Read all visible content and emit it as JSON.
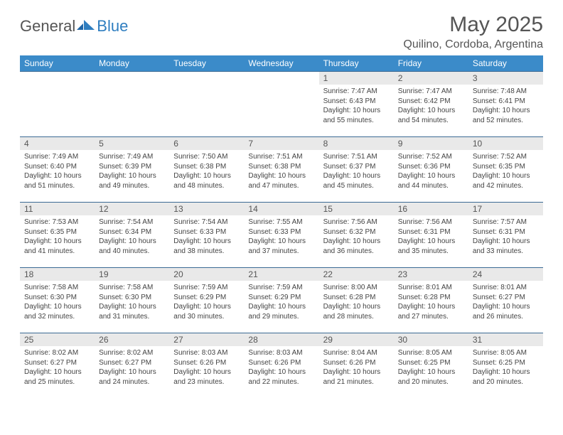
{
  "brand": {
    "part1": "General",
    "part2": "Blue"
  },
  "colors": {
    "header_bg": "#3b8bc9",
    "header_text": "#ffffff",
    "daynum_bg": "#e9e9e9",
    "rule": "#3b6a94",
    "text": "#444444",
    "title": "#555555"
  },
  "title": "May 2025",
  "location": "Quilino, Cordoba, Argentina",
  "day_headers": [
    "Sunday",
    "Monday",
    "Tuesday",
    "Wednesday",
    "Thursday",
    "Friday",
    "Saturday"
  ],
  "first_weekday_index": 4,
  "days": [
    {
      "n": 1,
      "sunrise": "7:47 AM",
      "sunset": "6:43 PM",
      "daylight": "10 hours and 55 minutes."
    },
    {
      "n": 2,
      "sunrise": "7:47 AM",
      "sunset": "6:42 PM",
      "daylight": "10 hours and 54 minutes."
    },
    {
      "n": 3,
      "sunrise": "7:48 AM",
      "sunset": "6:41 PM",
      "daylight": "10 hours and 52 minutes."
    },
    {
      "n": 4,
      "sunrise": "7:49 AM",
      "sunset": "6:40 PM",
      "daylight": "10 hours and 51 minutes."
    },
    {
      "n": 5,
      "sunrise": "7:49 AM",
      "sunset": "6:39 PM",
      "daylight": "10 hours and 49 minutes."
    },
    {
      "n": 6,
      "sunrise": "7:50 AM",
      "sunset": "6:38 PM",
      "daylight": "10 hours and 48 minutes."
    },
    {
      "n": 7,
      "sunrise": "7:51 AM",
      "sunset": "6:38 PM",
      "daylight": "10 hours and 47 minutes."
    },
    {
      "n": 8,
      "sunrise": "7:51 AM",
      "sunset": "6:37 PM",
      "daylight": "10 hours and 45 minutes."
    },
    {
      "n": 9,
      "sunrise": "7:52 AM",
      "sunset": "6:36 PM",
      "daylight": "10 hours and 44 minutes."
    },
    {
      "n": 10,
      "sunrise": "7:52 AM",
      "sunset": "6:35 PM",
      "daylight": "10 hours and 42 minutes."
    },
    {
      "n": 11,
      "sunrise": "7:53 AM",
      "sunset": "6:35 PM",
      "daylight": "10 hours and 41 minutes."
    },
    {
      "n": 12,
      "sunrise": "7:54 AM",
      "sunset": "6:34 PM",
      "daylight": "10 hours and 40 minutes."
    },
    {
      "n": 13,
      "sunrise": "7:54 AM",
      "sunset": "6:33 PM",
      "daylight": "10 hours and 38 minutes."
    },
    {
      "n": 14,
      "sunrise": "7:55 AM",
      "sunset": "6:33 PM",
      "daylight": "10 hours and 37 minutes."
    },
    {
      "n": 15,
      "sunrise": "7:56 AM",
      "sunset": "6:32 PM",
      "daylight": "10 hours and 36 minutes."
    },
    {
      "n": 16,
      "sunrise": "7:56 AM",
      "sunset": "6:31 PM",
      "daylight": "10 hours and 35 minutes."
    },
    {
      "n": 17,
      "sunrise": "7:57 AM",
      "sunset": "6:31 PM",
      "daylight": "10 hours and 33 minutes."
    },
    {
      "n": 18,
      "sunrise": "7:58 AM",
      "sunset": "6:30 PM",
      "daylight": "10 hours and 32 minutes."
    },
    {
      "n": 19,
      "sunrise": "7:58 AM",
      "sunset": "6:30 PM",
      "daylight": "10 hours and 31 minutes."
    },
    {
      "n": 20,
      "sunrise": "7:59 AM",
      "sunset": "6:29 PM",
      "daylight": "10 hours and 30 minutes."
    },
    {
      "n": 21,
      "sunrise": "7:59 AM",
      "sunset": "6:29 PM",
      "daylight": "10 hours and 29 minutes."
    },
    {
      "n": 22,
      "sunrise": "8:00 AM",
      "sunset": "6:28 PM",
      "daylight": "10 hours and 28 minutes."
    },
    {
      "n": 23,
      "sunrise": "8:01 AM",
      "sunset": "6:28 PM",
      "daylight": "10 hours and 27 minutes."
    },
    {
      "n": 24,
      "sunrise": "8:01 AM",
      "sunset": "6:27 PM",
      "daylight": "10 hours and 26 minutes."
    },
    {
      "n": 25,
      "sunrise": "8:02 AM",
      "sunset": "6:27 PM",
      "daylight": "10 hours and 25 minutes."
    },
    {
      "n": 26,
      "sunrise": "8:02 AM",
      "sunset": "6:27 PM",
      "daylight": "10 hours and 24 minutes."
    },
    {
      "n": 27,
      "sunrise": "8:03 AM",
      "sunset": "6:26 PM",
      "daylight": "10 hours and 23 minutes."
    },
    {
      "n": 28,
      "sunrise": "8:03 AM",
      "sunset": "6:26 PM",
      "daylight": "10 hours and 22 minutes."
    },
    {
      "n": 29,
      "sunrise": "8:04 AM",
      "sunset": "6:26 PM",
      "daylight": "10 hours and 21 minutes."
    },
    {
      "n": 30,
      "sunrise": "8:05 AM",
      "sunset": "6:25 PM",
      "daylight": "10 hours and 20 minutes."
    },
    {
      "n": 31,
      "sunrise": "8:05 AM",
      "sunset": "6:25 PM",
      "daylight": "10 hours and 20 minutes."
    }
  ],
  "labels": {
    "sunrise": "Sunrise:",
    "sunset": "Sunset:",
    "daylight": "Daylight:"
  }
}
